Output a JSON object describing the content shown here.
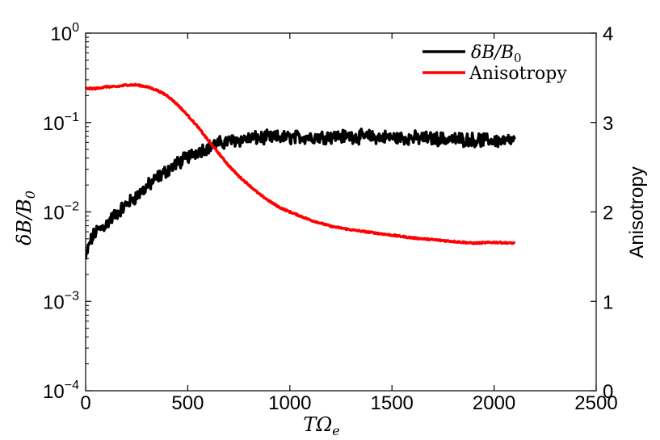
{
  "chart_data": {
    "type": "line",
    "xlabel": "TΩ",
    "xlabel_sub": "e",
    "ylabel_left": "δB/B",
    "ylabel_left_sub": "0",
    "ylabel_right": "Anisotropy",
    "xlim": [
      0,
      2500
    ],
    "xticks": [
      0,
      500,
      1000,
      1500,
      2000,
      2500
    ],
    "ylim_left_log10": [
      -4,
      0
    ],
    "yticks_left": [
      {
        "base": "10",
        "exp": "0"
      },
      {
        "base": "10",
        "exp": "−1"
      },
      {
        "base": "10",
        "exp": "−2"
      },
      {
        "base": "10",
        "exp": "−3"
      },
      {
        "base": "10",
        "exp": "−4"
      }
    ],
    "yticks_left_values": [
      0,
      -1,
      -2,
      -3,
      -4
    ],
    "ylim_right": [
      0,
      4
    ],
    "yticks_right": [
      4,
      3,
      2,
      1,
      0
    ],
    "legend": {
      "position": "top-right",
      "entries": [
        {
          "label": "δB/B",
          "label_sub": "0",
          "color": "#000000"
        },
        {
          "label": "Anisotropy",
          "color": "#ff0000"
        }
      ]
    },
    "series": [
      {
        "name": "δB/B0",
        "color": "#000000",
        "axis": "left-log",
        "noise": 0.06,
        "x": [
          0,
          20,
          50,
          100,
          150,
          200,
          250,
          300,
          350,
          400,
          450,
          500,
          550,
          600,
          650,
          700,
          750,
          800,
          900,
          1000,
          1100,
          1200,
          1300,
          1400,
          1500,
          1600,
          1700,
          1800,
          1900,
          2000,
          2100
        ],
        "y": [
          0.0029,
          0.0045,
          0.006,
          0.0072,
          0.0095,
          0.012,
          0.015,
          0.019,
          0.024,
          0.029,
          0.035,
          0.041,
          0.048,
          0.053,
          0.058,
          0.062,
          0.064,
          0.066,
          0.068,
          0.068,
          0.069,
          0.07,
          0.07,
          0.069,
          0.068,
          0.067,
          0.066,
          0.065,
          0.064,
          0.063,
          0.062
        ]
      },
      {
        "name": "Anisotropy",
        "color": "#ff0000",
        "axis": "right",
        "noise": 0.008,
        "x": [
          0,
          50,
          100,
          150,
          200,
          250,
          300,
          350,
          400,
          450,
          500,
          550,
          600,
          650,
          700,
          750,
          800,
          850,
          900,
          950,
          1000,
          1100,
          1200,
          1300,
          1400,
          1500,
          1600,
          1700,
          1800,
          1900,
          2000,
          2100
        ],
        "y": [
          3.38,
          3.38,
          3.4,
          3.4,
          3.42,
          3.42,
          3.4,
          3.36,
          3.3,
          3.2,
          3.08,
          2.95,
          2.8,
          2.66,
          2.52,
          2.4,
          2.3,
          2.2,
          2.12,
          2.05,
          2.0,
          1.91,
          1.84,
          1.8,
          1.77,
          1.74,
          1.71,
          1.69,
          1.67,
          1.65,
          1.66,
          1.65
        ]
      }
    ]
  }
}
